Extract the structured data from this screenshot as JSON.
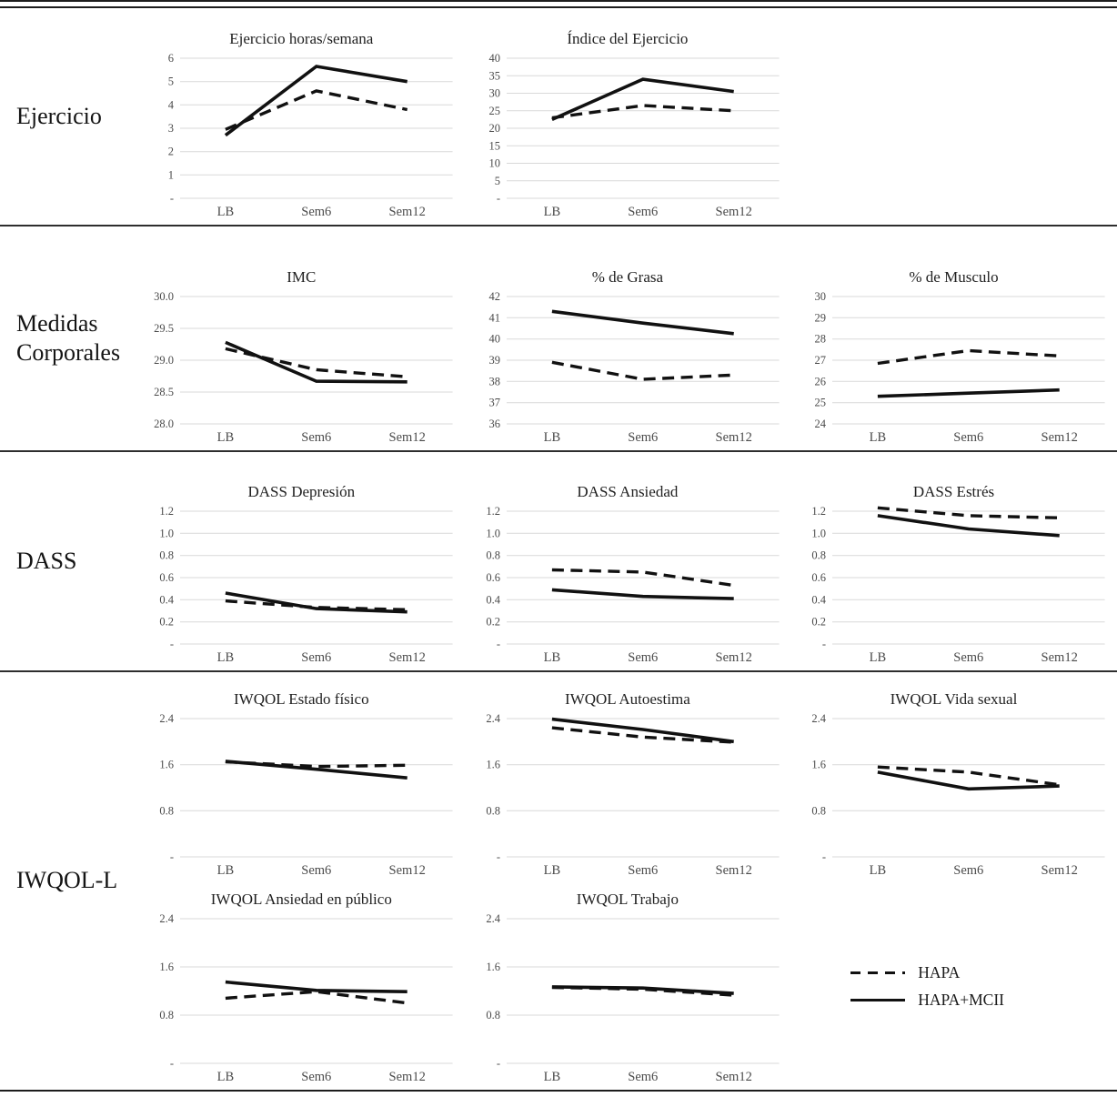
{
  "row_labels": [
    "Ejercicio",
    "Medidas Corporales",
    "DASS",
    "IWQOL-L"
  ],
  "legend": {
    "items": [
      {
        "label": "HAPA",
        "style": "dashed"
      },
      {
        "label": "HAPA+MCII",
        "style": "solid"
      }
    ]
  },
  "colors": {
    "line": "#111111",
    "grid": "#d9d9d9",
    "tick": "#4a4a4a",
    "title": "#1f1f1f"
  },
  "chart_data": [
    {
      "type": "line",
      "title": "Ejercicio horas/semana",
      "categories": [
        "LB",
        "Sem6",
        "Sem12"
      ],
      "ylim": [
        0,
        6
      ],
      "ytick_values": [
        6,
        5,
        4,
        3,
        2,
        1,
        0
      ],
      "ytick_labels": [
        "6",
        "5",
        "4",
        "3",
        "2",
        "1",
        "-"
      ],
      "series": [
        {
          "name": "HAPA",
          "dash": true,
          "values": [
            2.95,
            4.6,
            3.8
          ]
        },
        {
          "name": "HAPA+MCII",
          "dash": false,
          "values": [
            2.7,
            5.65,
            5.0
          ]
        }
      ]
    },
    {
      "type": "line",
      "title": "Índice del Ejercicio",
      "categories": [
        "LB",
        "Sem6",
        "Sem12"
      ],
      "ylim": [
        0,
        40
      ],
      "ytick_values": [
        40,
        35,
        30,
        25,
        20,
        15,
        10,
        5,
        0
      ],
      "ytick_labels": [
        "40",
        "35",
        "30",
        "25",
        "20",
        "15",
        "10",
        "5",
        "-"
      ],
      "series": [
        {
          "name": "HAPA",
          "dash": true,
          "values": [
            23,
            26.5,
            25
          ]
        },
        {
          "name": "HAPA+MCII",
          "dash": false,
          "values": [
            22.5,
            34,
            30.5
          ]
        }
      ]
    },
    {
      "type": "line",
      "title": "IMC",
      "categories": [
        "LB",
        "Sem6",
        "Sem12"
      ],
      "ylim": [
        28,
        30
      ],
      "ytick_values": [
        30,
        29.5,
        29,
        28.5,
        28
      ],
      "ytick_labels": [
        "30.0",
        "29.5",
        "29.0",
        "28.5",
        "28.0"
      ],
      "series": [
        {
          "name": "HAPA",
          "dash": true,
          "values": [
            29.18,
            28.85,
            28.74
          ]
        },
        {
          "name": "HAPA+MCII",
          "dash": false,
          "values": [
            29.28,
            28.67,
            28.66
          ]
        }
      ]
    },
    {
      "type": "line",
      "title": "% de Grasa",
      "categories": [
        "LB",
        "Sem6",
        "Sem12"
      ],
      "ylim": [
        36,
        42
      ],
      "ytick_values": [
        42,
        41,
        40,
        39,
        38,
        37,
        36
      ],
      "ytick_labels": [
        "42",
        "41",
        "40",
        "39",
        "38",
        "37",
        "36"
      ],
      "series": [
        {
          "name": "HAPA",
          "dash": true,
          "values": [
            38.9,
            38.1,
            38.3
          ]
        },
        {
          "name": "HAPA+MCII",
          "dash": false,
          "values": [
            41.3,
            40.75,
            40.25
          ]
        }
      ]
    },
    {
      "type": "line",
      "title": "% de Musculo",
      "categories": [
        "LB",
        "Sem6",
        "Sem12"
      ],
      "ylim": [
        24,
        30
      ],
      "ytick_values": [
        30,
        29,
        28,
        27,
        26,
        25,
        24
      ],
      "ytick_labels": [
        "30",
        "29",
        "28",
        "27",
        "26",
        "25",
        "24"
      ],
      "series": [
        {
          "name": "HAPA",
          "dash": true,
          "values": [
            26.85,
            27.45,
            27.2
          ]
        },
        {
          "name": "HAPA+MCII",
          "dash": false,
          "values": [
            25.3,
            25.45,
            25.6
          ]
        }
      ]
    },
    {
      "type": "line",
      "title": "DASS Depresión",
      "categories": [
        "LB",
        "Sem6",
        "Sem12"
      ],
      "ylim": [
        0,
        1.2
      ],
      "ytick_values": [
        1.2,
        1.0,
        0.8,
        0.6,
        0.4,
        0.2,
        0
      ],
      "ytick_labels": [
        "1.2",
        "1.0",
        "0.8",
        "0.6",
        "0.4",
        "0.2",
        "-"
      ],
      "series": [
        {
          "name": "HAPA",
          "dash": true,
          "values": [
            0.39,
            0.33,
            0.31
          ]
        },
        {
          "name": "HAPA+MCII",
          "dash": false,
          "values": [
            0.46,
            0.32,
            0.29
          ]
        }
      ]
    },
    {
      "type": "line",
      "title": "DASS Ansiedad",
      "categories": [
        "LB",
        "Sem6",
        "Sem12"
      ],
      "ylim": [
        0,
        1.2
      ],
      "ytick_values": [
        1.2,
        1.0,
        0.8,
        0.6,
        0.4,
        0.2,
        0
      ],
      "ytick_labels": [
        "1.2",
        "1.0",
        "0.8",
        "0.6",
        "0.4",
        "0.2",
        "-"
      ],
      "series": [
        {
          "name": "HAPA",
          "dash": true,
          "values": [
            0.67,
            0.65,
            0.53
          ]
        },
        {
          "name": "HAPA+MCII",
          "dash": false,
          "values": [
            0.49,
            0.43,
            0.41
          ]
        }
      ]
    },
    {
      "type": "line",
      "title": "DASS Estrés",
      "categories": [
        "LB",
        "Sem6",
        "Sem12"
      ],
      "ylim": [
        0,
        1.2
      ],
      "ytick_values": [
        1.2,
        1.0,
        0.8,
        0.6,
        0.4,
        0.2,
        0
      ],
      "ytick_labels": [
        "1.2",
        "1.0",
        "0.8",
        "0.6",
        "0.4",
        "0.2",
        "-"
      ],
      "series": [
        {
          "name": "HAPA",
          "dash": true,
          "values": [
            1.23,
            1.16,
            1.14
          ]
        },
        {
          "name": "HAPA+MCII",
          "dash": false,
          "values": [
            1.16,
            1.04,
            0.98
          ]
        }
      ]
    },
    {
      "type": "line",
      "title": "IWQOL Estado físico",
      "categories": [
        "LB",
        "Sem6",
        "Sem12"
      ],
      "ylim": [
        0,
        2.4
      ],
      "ytick_values": [
        2.4,
        1.6,
        0.8,
        0
      ],
      "ytick_labels": [
        "2.4",
        "1.6",
        "0.8",
        "-"
      ],
      "series": [
        {
          "name": "HAPA",
          "dash": true,
          "values": [
            1.65,
            1.57,
            1.59
          ]
        },
        {
          "name": "HAPA+MCII",
          "dash": false,
          "values": [
            1.66,
            1.52,
            1.37
          ]
        }
      ]
    },
    {
      "type": "line",
      "title": "IWQOL Autoestima",
      "categories": [
        "LB",
        "Sem6",
        "Sem12"
      ],
      "ylim": [
        0,
        2.4
      ],
      "ytick_values": [
        2.4,
        1.6,
        0.8,
        0
      ],
      "ytick_labels": [
        "2.4",
        "1.6",
        "0.8",
        "-"
      ],
      "series": [
        {
          "name": "HAPA",
          "dash": true,
          "values": [
            2.24,
            2.08,
            1.99
          ]
        },
        {
          "name": "HAPA+MCII",
          "dash": false,
          "values": [
            2.39,
            2.21,
            2.0
          ]
        }
      ]
    },
    {
      "type": "line",
      "title": "IWQOL Vida sexual",
      "categories": [
        "LB",
        "Sem6",
        "Sem12"
      ],
      "ylim": [
        0,
        2.4
      ],
      "ytick_values": [
        2.4,
        1.6,
        0.8,
        0
      ],
      "ytick_labels": [
        "2.4",
        "1.6",
        "0.8",
        "-"
      ],
      "series": [
        {
          "name": "HAPA",
          "dash": true,
          "values": [
            1.56,
            1.47,
            1.25
          ]
        },
        {
          "name": "HAPA+MCII",
          "dash": false,
          "values": [
            1.47,
            1.18,
            1.23
          ]
        }
      ]
    },
    {
      "type": "line",
      "title": "IWQOL Ansiedad en público",
      "categories": [
        "LB",
        "Sem6",
        "Sem12"
      ],
      "ylim": [
        0,
        2.4
      ],
      "ytick_values": [
        2.4,
        1.6,
        0.8,
        0
      ],
      "ytick_labels": [
        "2.4",
        "1.6",
        "0.8",
        "-"
      ],
      "series": [
        {
          "name": "HAPA",
          "dash": true,
          "values": [
            1.08,
            1.19,
            1.0
          ]
        },
        {
          "name": "HAPA+MCII",
          "dash": false,
          "values": [
            1.35,
            1.21,
            1.19
          ]
        }
      ]
    },
    {
      "type": "line",
      "title": "IWQOL Trabajo",
      "categories": [
        "LB",
        "Sem6",
        "Sem12"
      ],
      "ylim": [
        0,
        2.4
      ],
      "ytick_values": [
        2.4,
        1.6,
        0.8,
        0
      ],
      "ytick_labels": [
        "2.4",
        "1.6",
        "0.8",
        "-"
      ],
      "series": [
        {
          "name": "HAPA",
          "dash": true,
          "values": [
            1.26,
            1.23,
            1.13
          ]
        },
        {
          "name": "HAPA+MCII",
          "dash": false,
          "values": [
            1.27,
            1.25,
            1.16
          ]
        }
      ]
    }
  ]
}
